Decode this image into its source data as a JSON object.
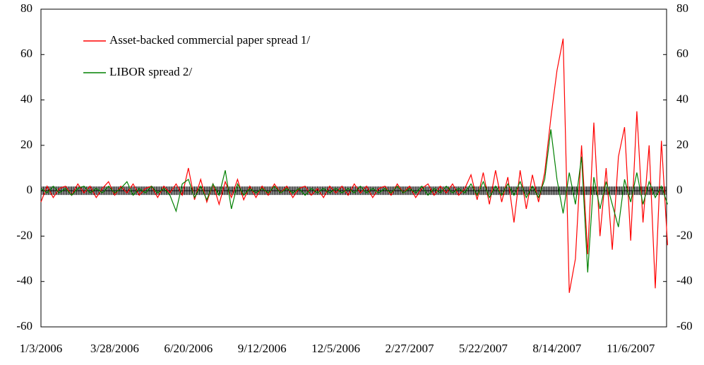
{
  "chart_data": {
    "type": "line",
    "categories": [
      "1/3/2006",
      null,
      null,
      null,
      null,
      null,
      null,
      null,
      null,
      null,
      null,
      null,
      "3/28/2006",
      null,
      null,
      null,
      null,
      null,
      null,
      null,
      null,
      null,
      null,
      null,
      "6/20/2006",
      null,
      null,
      null,
      null,
      null,
      null,
      null,
      null,
      null,
      null,
      null,
      "9/12/2006",
      null,
      null,
      null,
      null,
      null,
      null,
      null,
      null,
      null,
      null,
      null,
      "12/5/2006",
      null,
      null,
      null,
      null,
      null,
      null,
      null,
      null,
      null,
      null,
      null,
      "2/27/2007",
      null,
      null,
      null,
      null,
      null,
      null,
      null,
      null,
      null,
      null,
      null,
      "5/22/2007",
      null,
      null,
      null,
      null,
      null,
      null,
      null,
      null,
      null,
      null,
      null,
      "8/14/2007",
      null,
      null,
      null,
      null,
      null,
      null,
      null,
      null,
      null,
      null,
      null,
      "11/6/2007",
      null,
      null,
      null,
      null,
      null,
      null
    ],
    "series": [
      {
        "name": "Asset-backed commercial paper spread 1/",
        "color": "#ff0000",
        "values": [
          -5,
          2,
          -3,
          1,
          2,
          -2,
          3,
          -1,
          2,
          -3,
          1,
          4,
          -2,
          2,
          -1,
          3,
          -2,
          1,
          2,
          -3,
          2,
          -1,
          3,
          -2,
          10,
          -4,
          5,
          -5,
          3,
          -6,
          4,
          -3,
          5,
          -4,
          2,
          -3,
          2,
          -2,
          3,
          -1,
          2,
          -3,
          1,
          2,
          -2,
          1,
          -3,
          2,
          -1,
          2,
          -2,
          3,
          -1,
          2,
          -3,
          1,
          2,
          -2,
          3,
          -1,
          2,
          -3,
          1,
          3,
          -2,
          2,
          -1,
          3,
          -2,
          1,
          7,
          -4,
          8,
          -6,
          9,
          -5,
          6,
          -14,
          9,
          -8,
          7,
          -5,
          8,
          32,
          53,
          67,
          -45,
          -30,
          20,
          -28,
          30,
          -20,
          10,
          -26,
          15,
          28,
          -22,
          35,
          -14,
          20,
          -43,
          22,
          -24
        ]
      },
      {
        "name": "LIBOR spread 2/",
        "color": "#008000",
        "values": [
          1,
          -1,
          2,
          -1,
          1,
          -2,
          1,
          2,
          -1,
          1,
          -1,
          2,
          -1,
          1,
          4,
          -2,
          1,
          -1,
          2,
          -1,
          1,
          -2,
          -9,
          3,
          5,
          -3,
          2,
          -4,
          3,
          -2,
          9,
          -8,
          3,
          -2,
          1,
          -1,
          1,
          -1,
          2,
          -1,
          1,
          -1,
          1,
          -2,
          1,
          -1,
          1,
          -1,
          1,
          -1,
          1,
          -1,
          2,
          -1,
          1,
          -1,
          1,
          -1,
          2,
          -1,
          1,
          -1,
          2,
          -2,
          1,
          -1,
          2,
          -1,
          1,
          -1,
          3,
          -2,
          4,
          -3,
          2,
          -2,
          3,
          -2,
          4,
          -3,
          2,
          -3,
          5,
          27,
          5,
          -10,
          8,
          -6,
          15,
          -36,
          6,
          -8,
          4,
          -6,
          -16,
          5,
          -5,
          8,
          -6,
          4,
          -3,
          2,
          -6
        ]
      }
    ],
    "ylim": [
      -60,
      80
    ],
    "yticks": [
      -60,
      -40,
      -20,
      0,
      20,
      40,
      60,
      80
    ],
    "y2lim": [
      -60,
      80
    ],
    "y2ticks": [
      -60,
      -40,
      -20,
      0,
      20,
      40,
      60,
      80
    ]
  }
}
